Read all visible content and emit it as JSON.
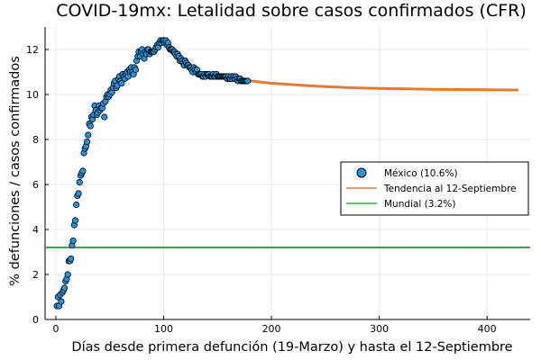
{
  "chart_data": {
    "type": "scatter",
    "title": "COVID-19mx: Letalidad sobre casos confirmados (CFR)",
    "xlabel": "Días desde primera defunción (19-Marzo) y hasta el 12-Septiembre",
    "ylabel": "% defunciones / casos confirmados",
    "xlim": [
      -10,
      440
    ],
    "ylim": [
      0,
      13
    ],
    "xticks": [
      0,
      100,
      200,
      300,
      400
    ],
    "yticks": [
      0,
      2,
      4,
      6,
      8,
      10,
      12
    ],
    "grid": true,
    "legend_position": "right",
    "colors": {
      "mexico": "#1f96e0",
      "tendencia": "#e07b39",
      "mundial": "#3aa84a"
    },
    "series": [
      {
        "name": "México (10.6%)",
        "kind": "scatter",
        "points": [
          [
            1,
            0.6
          ],
          [
            2,
            1.0
          ],
          [
            3,
            0.6
          ],
          [
            4,
            1.1
          ],
          [
            5,
            0.8
          ],
          [
            6,
            1.2
          ],
          [
            7,
            1.3
          ],
          [
            8,
            1.4
          ],
          [
            9,
            1.7
          ],
          [
            10,
            1.8
          ],
          [
            11,
            2.0
          ],
          [
            12,
            2.6
          ],
          [
            13,
            2.6
          ],
          [
            14,
            2.7
          ],
          [
            15,
            3.3
          ],
          [
            16,
            3.5
          ],
          [
            17,
            4.2
          ],
          [
            18,
            4.4
          ],
          [
            19,
            5.1
          ],
          [
            20,
            5.5
          ],
          [
            21,
            5.6
          ],
          [
            22,
            6.1
          ],
          [
            23,
            6.4
          ],
          [
            24,
            6.5
          ],
          [
            25,
            6.6
          ],
          [
            26,
            7.4
          ],
          [
            27,
            7.6
          ],
          [
            28,
            7.7
          ],
          [
            29,
            7.9
          ],
          [
            30,
            8.2
          ],
          [
            31,
            8.7
          ],
          [
            32,
            8.6
          ],
          [
            33,
            9.0
          ],
          [
            34,
            8.9
          ],
          [
            35,
            9.1
          ],
          [
            36,
            9.5
          ],
          [
            37,
            9.3
          ],
          [
            38,
            9.1
          ],
          [
            39,
            9.2
          ],
          [
            40,
            9.5
          ],
          [
            41,
            9.3
          ],
          [
            42,
            9.4
          ],
          [
            43,
            9.4
          ],
          [
            44,
            9.6
          ],
          [
            45,
            9.0
          ],
          [
            46,
            9.7
          ],
          [
            47,
            9.9
          ],
          [
            48,
            10.0
          ],
          [
            49,
            9.9
          ],
          [
            50,
            10.0
          ],
          [
            51,
            10.2
          ],
          [
            52,
            10.1
          ],
          [
            53,
            10.3
          ],
          [
            54,
            10.5
          ],
          [
            55,
            10.6
          ],
          [
            56,
            10.3
          ],
          [
            57,
            10.4
          ],
          [
            58,
            10.7
          ],
          [
            59,
            10.8
          ],
          [
            60,
            10.6
          ],
          [
            61,
            10.5
          ],
          [
            62,
            10.9
          ],
          [
            63,
            10.8
          ],
          [
            64,
            10.7
          ],
          [
            65,
            10.9
          ],
          [
            66,
            11.0
          ],
          [
            67,
            10.8
          ],
          [
            68,
            11.1
          ],
          [
            69,
            11.0
          ],
          [
            70,
            11.2
          ],
          [
            71,
            11.0
          ],
          [
            72,
            10.9
          ],
          [
            73,
            11.2
          ],
          [
            74,
            11.1
          ],
          [
            75,
            11.5
          ],
          [
            76,
            11.7
          ],
          [
            77,
            11.9
          ],
          [
            78,
            11.7
          ],
          [
            79,
            11.9
          ],
          [
            80,
            12.0
          ],
          [
            81,
            11.8
          ],
          [
            82,
            11.6
          ],
          [
            83,
            11.9
          ],
          [
            84,
            11.8
          ],
          [
            85,
            12.0
          ],
          [
            86,
            12.0
          ],
          [
            87,
            11.8
          ],
          [
            88,
            11.9
          ],
          [
            89,
            11.9
          ],
          [
            90,
            11.9
          ],
          [
            91,
            11.9
          ],
          [
            92,
            12.0
          ],
          [
            93,
            12.1
          ],
          [
            94,
            12.2
          ],
          [
            95,
            12.1
          ],
          [
            96,
            12.3
          ],
          [
            97,
            12.4
          ],
          [
            98,
            12.3
          ],
          [
            99,
            12.4
          ],
          [
            100,
            12.4
          ],
          [
            101,
            12.3
          ],
          [
            102,
            12.4
          ],
          [
            103,
            12.2
          ],
          [
            104,
            12.3
          ],
          [
            105,
            12.1
          ],
          [
            106,
            12.0
          ],
          [
            107,
            12.0
          ],
          [
            108,
            12.0
          ],
          [
            109,
            11.9
          ],
          [
            110,
            11.9
          ],
          [
            111,
            11.8
          ],
          [
            112,
            11.7
          ],
          [
            113,
            11.8
          ],
          [
            114,
            11.7
          ],
          [
            115,
            11.5
          ],
          [
            116,
            11.6
          ],
          [
            117,
            11.5
          ],
          [
            118,
            11.4
          ],
          [
            119,
            11.3
          ],
          [
            120,
            11.5
          ],
          [
            121,
            11.4
          ],
          [
            122,
            11.3
          ],
          [
            123,
            11.3
          ],
          [
            124,
            11.2
          ],
          [
            125,
            11.2
          ],
          [
            126,
            11.1
          ],
          [
            127,
            11.0
          ],
          [
            128,
            11.2
          ],
          [
            129,
            11.1
          ],
          [
            130,
            11.0
          ],
          [
            131,
            11.1
          ],
          [
            132,
            10.9
          ],
          [
            133,
            10.9
          ],
          [
            134,
            10.9
          ],
          [
            135,
            10.9
          ],
          [
            136,
            10.8
          ],
          [
            137,
            10.8
          ],
          [
            138,
            10.9
          ],
          [
            139,
            10.8
          ],
          [
            140,
            10.9
          ],
          [
            141,
            10.9
          ],
          [
            142,
            10.9
          ],
          [
            143,
            10.8
          ],
          [
            144,
            10.8
          ],
          [
            145,
            10.8
          ],
          [
            146,
            10.9
          ],
          [
            147,
            10.8
          ],
          [
            148,
            10.8
          ],
          [
            149,
            10.9
          ],
          [
            150,
            10.8
          ],
          [
            151,
            10.8
          ],
          [
            152,
            10.8
          ],
          [
            153,
            10.8
          ],
          [
            154,
            10.8
          ],
          [
            155,
            10.8
          ],
          [
            156,
            10.8
          ],
          [
            157,
            10.8
          ],
          [
            158,
            10.8
          ],
          [
            159,
            10.7
          ],
          [
            160,
            10.8
          ],
          [
            161,
            10.7
          ],
          [
            162,
            10.7
          ],
          [
            163,
            10.8
          ],
          [
            164,
            10.7
          ],
          [
            165,
            10.8
          ],
          [
            166,
            10.7
          ],
          [
            167,
            10.8
          ],
          [
            168,
            10.7
          ],
          [
            169,
            10.6
          ],
          [
            170,
            10.7
          ],
          [
            171,
            10.7
          ],
          [
            172,
            10.6
          ],
          [
            173,
            10.6
          ],
          [
            174,
            10.6
          ],
          [
            175,
            10.6
          ],
          [
            176,
            10.6
          ],
          [
            177,
            10.6
          ],
          [
            178,
            10.6
          ]
        ]
      },
      {
        "name": "Tendencia al 12-Septiembre",
        "kind": "line",
        "points": [
          [
            178,
            10.62
          ],
          [
            200,
            10.5
          ],
          [
            225,
            10.42
          ],
          [
            250,
            10.35
          ],
          [
            275,
            10.3
          ],
          [
            300,
            10.27
          ],
          [
            325,
            10.25
          ],
          [
            350,
            10.23
          ],
          [
            375,
            10.22
          ],
          [
            400,
            10.21
          ],
          [
            428,
            10.2
          ]
        ]
      },
      {
        "name": "Mundial (3.2%)",
        "kind": "hline",
        "value": 3.2
      }
    ]
  }
}
